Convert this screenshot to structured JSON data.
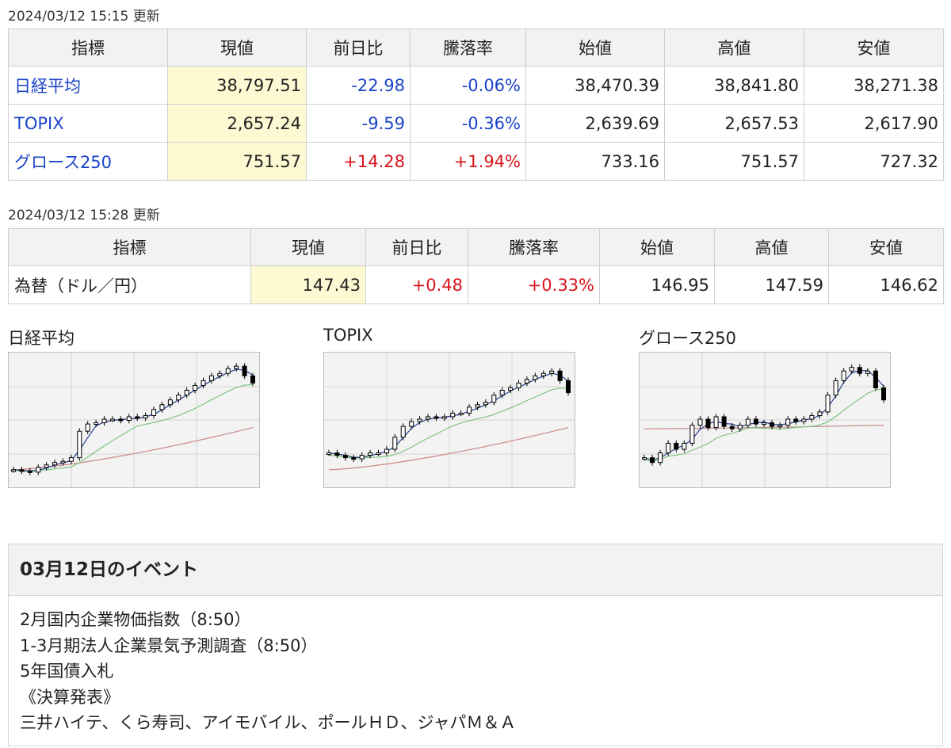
{
  "stock": {
    "updated": "2024/03/12 15:15 更新",
    "headers": [
      "指標",
      "現値",
      "前日比",
      "騰落率",
      "始値",
      "高値",
      "安値"
    ],
    "rows": [
      {
        "name": "日経平均",
        "current": "38,797.51",
        "change": "-22.98",
        "rate": "-0.06%",
        "open": "38,470.39",
        "high": "38,841.80",
        "low": "38,271.38",
        "dir": "neg"
      },
      {
        "name": "TOPIX",
        "current": "2,657.24",
        "change": "-9.59",
        "rate": "-0.36%",
        "open": "2,639.69",
        "high": "2,657.53",
        "low": "2,617.90",
        "dir": "neg"
      },
      {
        "name": "グロース250",
        "current": "751.57",
        "change": "+14.28",
        "rate": "+1.94%",
        "open": "733.16",
        "high": "751.57",
        "low": "727.32",
        "dir": "pos"
      }
    ]
  },
  "fx": {
    "updated": "2024/03/12 15:28 更新",
    "headers": [
      "指標",
      "現値",
      "前日比",
      "騰落率",
      "始値",
      "高値",
      "安値"
    ],
    "rows": [
      {
        "name": "為替（ドル／円）",
        "current": "147.43",
        "change": "+0.48",
        "rate": "+0.33%",
        "open": "146.95",
        "high": "147.59",
        "low": "146.62",
        "dir": "pos"
      }
    ]
  },
  "charts": {
    "titles": [
      "日経平均",
      "TOPIX",
      "グロース250"
    ],
    "colors": {
      "ma_short": "#1f3f8f",
      "ma_mid": "#7fc47f",
      "ma_long": "#cc8888",
      "grid": "#d6d6d6",
      "candle": "#000000"
    }
  },
  "chart_data": [
    {
      "type": "candlestick",
      "title": "日経平均",
      "trend": "uptrend with three moving averages",
      "close_path": [
        0.08,
        0.07,
        0.06,
        0.1,
        0.12,
        0.14,
        0.15,
        0.18,
        0.4,
        0.46,
        0.47,
        0.5,
        0.5,
        0.49,
        0.52,
        0.51,
        0.53,
        0.58,
        0.62,
        0.66,
        0.7,
        0.74,
        0.78,
        0.82,
        0.86,
        0.88,
        0.92,
        0.94,
        0.86,
        0.8
      ],
      "series": [
        "ma_short",
        "ma_mid",
        "ma_long"
      ]
    },
    {
      "type": "candlestick",
      "title": "TOPIX",
      "trend": "uptrend with three moving averages",
      "close_path": [
        0.22,
        0.2,
        0.18,
        0.17,
        0.2,
        0.22,
        0.22,
        0.25,
        0.35,
        0.44,
        0.48,
        0.5,
        0.52,
        0.51,
        0.52,
        0.55,
        0.55,
        0.6,
        0.62,
        0.64,
        0.7,
        0.74,
        0.76,
        0.8,
        0.83,
        0.86,
        0.88,
        0.9,
        0.82,
        0.72
      ],
      "series": [
        "ma_short",
        "ma_mid",
        "ma_long"
      ]
    },
    {
      "type": "candlestick",
      "title": "グロース250",
      "trend": "volatile uptrend with three moving averages",
      "close_path": [
        0.18,
        0.14,
        0.22,
        0.3,
        0.25,
        0.3,
        0.45,
        0.5,
        0.43,
        0.52,
        0.44,
        0.42,
        0.45,
        0.5,
        0.46,
        0.47,
        0.44,
        0.45,
        0.5,
        0.48,
        0.5,
        0.53,
        0.56,
        0.7,
        0.82,
        0.9,
        0.93,
        0.88,
        0.9,
        0.76,
        0.66
      ],
      "series": [
        "ma_short",
        "ma_mid",
        "ma_long"
      ]
    }
  ],
  "events": {
    "title": "03月12日のイベント",
    "items": [
      "2月国内企業物価指数（8:50）",
      "1-3月期法人企業景気予測調査（8:50）",
      "5年国債入札",
      "《決算発表》",
      "三井ハイテ、くら寿司、アイモバイル、ポールＨＤ、ジャパＭ＆Ａ"
    ]
  }
}
